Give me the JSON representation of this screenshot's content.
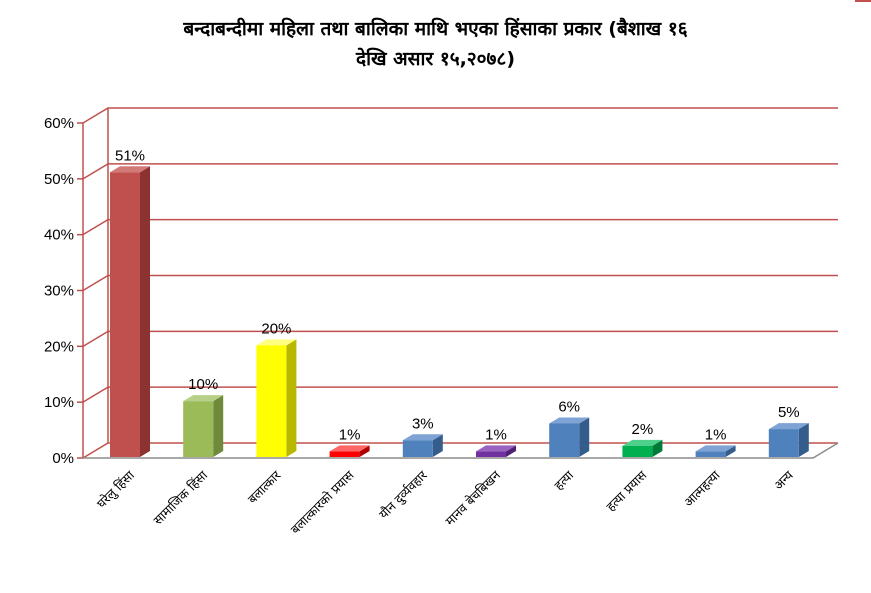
{
  "chart_data": {
    "type": "bar",
    "title_line1": "बन्दाबन्दीमा महिला तथा बालिका माथि भएका हिंसाका प्रकार (बैशाख १६",
    "title_line2": "देखि असार १५,२०७८)",
    "categories": [
      "घरेलु हिंसा",
      "सामाजिक हिंसा",
      "बलात्कार",
      "बलात्कारको प्रयास",
      "यौन दुर्व्यवहार",
      "मानव बेचबिखन",
      "हत्या",
      "हत्या प्रयास",
      "आत्महत्या",
      "अन्य"
    ],
    "values": [
      51,
      10,
      20,
      1,
      3,
      1,
      6,
      2,
      1,
      5
    ],
    "data_labels": [
      "51%",
      "10%",
      "20%",
      "1%",
      "3%",
      "1%",
      "6%",
      "2%",
      "1%",
      "5%"
    ],
    "colors": [
      "#c0504d",
      "#9bbb59",
      "#ffff00",
      "#ff0000",
      "#4f81bd",
      "#7030a0",
      "#4f81bd",
      "#00b050",
      "#4f81bd",
      "#4f81bd"
    ],
    "side_colors": [
      "#8c3331",
      "#6f8a3b",
      "#b8b800",
      "#b00000",
      "#355d8c",
      "#4e1f73",
      "#355d8c",
      "#007a38",
      "#355d8c",
      "#355d8c"
    ],
    "top_colors": [
      "#d27a78",
      "#b7cf86",
      "#ffff80",
      "#ff6666",
      "#7ea3d4",
      "#9a63c2",
      "#7ea3d4",
      "#4dd08a",
      "#7ea3d4",
      "#7ea3d4"
    ],
    "y_ticks": [
      "0%",
      "10%",
      "20%",
      "30%",
      "40%",
      "50%",
      "60%"
    ],
    "ylim": [
      0,
      60
    ],
    "gridline_color": "#c0504d",
    "grid": true,
    "legend": "none"
  }
}
